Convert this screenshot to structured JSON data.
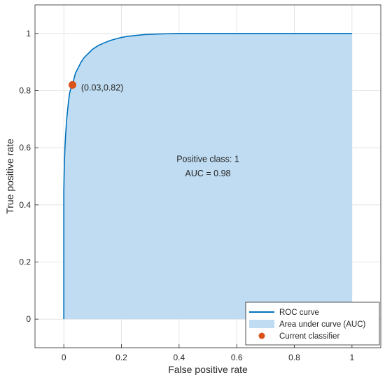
{
  "chart_data": {
    "type": "area",
    "xlabel": "False positive rate",
    "ylabel": "True positive rate",
    "xlim": [
      -0.1,
      1.1
    ],
    "ylim": [
      -0.1,
      1.1
    ],
    "x_ticks": [
      0,
      0.2,
      0.4,
      0.6,
      0.8,
      1
    ],
    "y_ticks": [
      0,
      0.2,
      0.4,
      0.6,
      0.8,
      1
    ],
    "x_tick_labels": [
      "0",
      "0.2",
      "0.4",
      "0.6",
      "0.8",
      "1"
    ],
    "y_tick_labels": [
      "0",
      "0.2",
      "0.4",
      "0.6",
      "0.8",
      "1"
    ],
    "grid": true,
    "legend_position": "bottom-right",
    "series": [
      {
        "name": "ROC curve",
        "kind": "line",
        "color": "#0072bd",
        "x": [
          0,
          0,
          0.002,
          0.004,
          0.006,
          0.008,
          0.01,
          0.013,
          0.016,
          0.02,
          0.025,
          0.03,
          0.035,
          0.04,
          0.045,
          0.05,
          0.06,
          0.07,
          0.08,
          0.09,
          0.1,
          0.12,
          0.14,
          0.16,
          0.18,
          0.2,
          0.22,
          0.25,
          0.28,
          0.32,
          0.36,
          0.4,
          0.5,
          0.6,
          0.8,
          1.0
        ],
        "y": [
          0,
          0.45,
          0.55,
          0.6,
          0.64,
          0.67,
          0.7,
          0.73,
          0.76,
          0.79,
          0.81,
          0.82,
          0.84,
          0.86,
          0.87,
          0.88,
          0.9,
          0.915,
          0.925,
          0.935,
          0.945,
          0.958,
          0.967,
          0.975,
          0.981,
          0.986,
          0.99,
          0.993,
          0.996,
          0.998,
          0.999,
          1.0,
          1.0,
          1.0,
          1.0,
          1.0
        ]
      },
      {
        "name": "Area under curve (AUC)",
        "kind": "area",
        "color": "#bfdcf2"
      },
      {
        "name": "Current classifier",
        "kind": "scatter",
        "color": "#d95319",
        "x": [
          0.03
        ],
        "y": [
          0.82
        ]
      }
    ],
    "annotations": [
      {
        "text": "(0.03,0.82)",
        "x": 0.06,
        "y": 0.8
      },
      {
        "text": "Positive class: 1",
        "x": 0.5,
        "y": 0.55
      },
      {
        "text": "AUC = 0.98",
        "x": 0.5,
        "y": 0.5
      }
    ]
  }
}
